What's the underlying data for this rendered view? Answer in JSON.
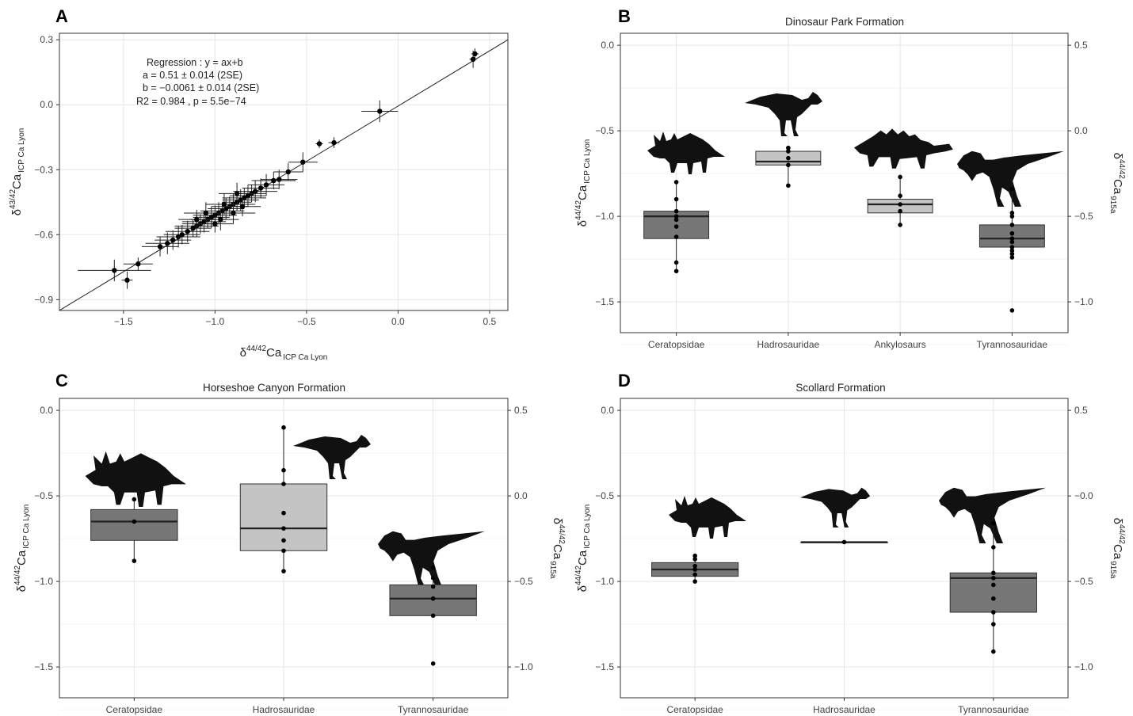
{
  "colors": {
    "box_dark": "#777777",
    "box_light": "#c4c4c4",
    "point": "#000000",
    "grid": "#e6e6e6"
  },
  "chart_data": [
    {
      "id": "A",
      "letter": "A",
      "type": "scatter",
      "title": "",
      "xlabel": {
        "base": "δ",
        "sup": "44/42",
        "main": "Ca",
        "sub": "ICP Ca Lyon"
      },
      "ylabel": {
        "base": "δ",
        "sup": "43/42",
        "main": "Ca",
        "sub": "ICP Ca Lyon"
      },
      "xlim": [
        -1.85,
        0.6
      ],
      "ylim": [
        -0.95,
        0.33
      ],
      "xticks": [
        -1.5,
        -1.0,
        -0.5,
        0.0,
        0.5
      ],
      "xtick_labels": [
        "−1.5",
        "−1.0",
        "−0.5",
        "0.0",
        "0.5"
      ],
      "yticks": [
        -0.9,
        -0.6,
        -0.3,
        0.0,
        0.3
      ],
      "ytick_labels": [
        "−0.9",
        "−0.6",
        "−0.3",
        "0.0",
        "0.3"
      ],
      "annotation": [
        "Regression : y = ax+b",
        "a =  0.51 ± 0.014 (2SE)",
        "b = −0.0061 ± 0.014 (2SE)",
        "R2 =  0.984 , p =  5.5e−74"
      ],
      "regression": {
        "slope": 0.51,
        "intercept": -0.0061
      },
      "points": [
        [
          0.42,
          0.235,
          0.02,
          0.025
        ],
        [
          0.41,
          0.21,
          0.02,
          0.04
        ],
        [
          -0.1,
          -0.03,
          0.1,
          0.05
        ],
        [
          -0.43,
          -0.18,
          0.02,
          0.02
        ],
        [
          -0.35,
          -0.175,
          0.03,
          0.025
        ],
        [
          -0.52,
          -0.265,
          0.08,
          0.045
        ],
        [
          -0.6,
          -0.31,
          0.08,
          0.04
        ],
        [
          -0.65,
          -0.345,
          0.1,
          0.045
        ],
        [
          -0.68,
          -0.35,
          0.12,
          0.04
        ],
        [
          -0.72,
          -0.37,
          0.1,
          0.05
        ],
        [
          -0.75,
          -0.385,
          0.1,
          0.045
        ],
        [
          -0.78,
          -0.4,
          0.12,
          0.05
        ],
        [
          -0.8,
          -0.41,
          0.08,
          0.04
        ],
        [
          -0.82,
          -0.42,
          0.1,
          0.05
        ],
        [
          -0.84,
          -0.43,
          0.12,
          0.045
        ],
        [
          -0.86,
          -0.44,
          0.1,
          0.05
        ],
        [
          -0.88,
          -0.45,
          0.08,
          0.04
        ],
        [
          -0.9,
          -0.46,
          0.12,
          0.05
        ],
        [
          -0.92,
          -0.47,
          0.1,
          0.045
        ],
        [
          -0.94,
          -0.48,
          0.1,
          0.05
        ],
        [
          -0.96,
          -0.49,
          0.12,
          0.04
        ],
        [
          -0.98,
          -0.5,
          0.1,
          0.05
        ],
        [
          -1.0,
          -0.51,
          0.12,
          0.045
        ],
        [
          -1.02,
          -0.52,
          0.1,
          0.05
        ],
        [
          -1.04,
          -0.53,
          0.1,
          0.04
        ],
        [
          -1.06,
          -0.54,
          0.12,
          0.05
        ],
        [
          -1.08,
          -0.55,
          0.1,
          0.045
        ],
        [
          -1.1,
          -0.56,
          0.12,
          0.05
        ],
        [
          -1.12,
          -0.57,
          0.1,
          0.04
        ],
        [
          -1.15,
          -0.585,
          0.12,
          0.05
        ],
        [
          -1.18,
          -0.6,
          0.1,
          0.045
        ],
        [
          -1.2,
          -0.61,
          0.12,
          0.05
        ],
        [
          -1.23,
          -0.625,
          0.1,
          0.045
        ],
        [
          -1.26,
          -0.64,
          0.12,
          0.05
        ],
        [
          -1.3,
          -0.655,
          0.1,
          0.045
        ],
        [
          -0.95,
          -0.46,
          0.1,
          0.05
        ],
        [
          -0.9,
          -0.5,
          0.12,
          0.05
        ],
        [
          -0.85,
          -0.47,
          0.1,
          0.045
        ],
        [
          -1.05,
          -0.5,
          0.12,
          0.05
        ],
        [
          -1.0,
          -0.55,
          0.1,
          0.04
        ],
        [
          -0.97,
          -0.53,
          0.1,
          0.05
        ],
        [
          -1.1,
          -0.53,
          0.1,
          0.045
        ],
        [
          -0.88,
          -0.41,
          0.1,
          0.05
        ],
        [
          -1.42,
          -0.735,
          0.08,
          0.03
        ],
        [
          -1.48,
          -0.81,
          0.03,
          0.04
        ],
        [
          -1.55,
          -0.765,
          0.2,
          0.05
        ]
      ]
    },
    {
      "id": "B",
      "letter": "B",
      "type": "box",
      "title": "Dinosaur Park Formation",
      "ylabel_left": {
        "base": "δ",
        "sup": "44/42",
        "main": "Ca",
        "sub": "ICP Ca Lyon"
      },
      "ylabel_right": {
        "base": "δ",
        "sup": "44/42",
        "main": "Ca",
        "sub": "915a"
      },
      "ylim": [
        -1.68,
        0.07
      ],
      "yticks_left": [
        0.0,
        -0.5,
        -1.0,
        -1.5
      ],
      "ytick_labels_left": [
        "0.0",
        "−0.5",
        "−1.0",
        "−1.5"
      ],
      "yticks_right_at": [
        0.0,
        -0.5,
        -1.0,
        -1.5
      ],
      "ytick_labels_right": [
        "0.5",
        "0.0",
        "−0.5",
        "−1.0"
      ],
      "categories": [
        "Ceratopsidae",
        "Hadrosauridae",
        "Ankylosaurs",
        "Tyrannosauridae"
      ],
      "boxes": [
        {
          "q1": -1.13,
          "median": -1.0,
          "q3": -0.97,
          "min": -1.32,
          "max": -0.8,
          "fill": "dark",
          "silhouette": "ceratopsid",
          "points": [
            -0.8,
            -0.9,
            -0.97,
            -1.0,
            -1.02,
            -1.06,
            -1.12,
            -1.27,
            -1.32
          ]
        },
        {
          "q1": -0.7,
          "median": -0.68,
          "q3": -0.62,
          "min": -0.82,
          "max": -0.6,
          "fill": "light",
          "silhouette": "hadrosaur",
          "points": [
            -0.6,
            -0.62,
            -0.66,
            -0.7,
            -0.82
          ]
        },
        {
          "q1": -0.98,
          "median": -0.93,
          "q3": -0.9,
          "min": -1.05,
          "max": -0.77,
          "fill": "light",
          "silhouette": "ankylosaur",
          "points": [
            -0.77,
            -0.88,
            -0.93,
            -0.97,
            -1.05
          ]
        },
        {
          "q1": -1.18,
          "median": -1.13,
          "q3": -1.05,
          "min": -1.24,
          "max": -0.84,
          "fill": "dark",
          "silhouette": "tyrannosaur",
          "points": [
            -0.84,
            -0.98,
            -1.0,
            -1.05,
            -1.1,
            -1.13,
            -1.15,
            -1.18,
            -1.2,
            -1.22,
            -1.24,
            -1.55
          ]
        }
      ]
    },
    {
      "id": "C",
      "letter": "C",
      "type": "box",
      "title": "Horseshoe Canyon Formation",
      "ylabel_left": {
        "base": "δ",
        "sup": "44/42",
        "main": "Ca",
        "sub": "ICP Ca Lyon"
      },
      "ylabel_right": {
        "base": "δ",
        "sup": "44/42",
        "main": "Ca",
        "sub": "915a"
      },
      "ylim": [
        -1.68,
        0.07
      ],
      "yticks_left": [
        0.0,
        -0.5,
        -1.0,
        -1.5
      ],
      "ytick_labels_left": [
        "0.0",
        "−0.5",
        "−1.0",
        "−1.5"
      ],
      "yticks_right_at": [
        0.0,
        -0.5,
        -1.0,
        -1.5
      ],
      "ytick_labels_right": [
        "0.5",
        "0.0",
        "−0.5",
        "−1.0"
      ],
      "categories": [
        "Ceratopsidae",
        "Hadrosauridae",
        "Tyrannosauridae"
      ],
      "boxes": [
        {
          "q1": -0.76,
          "median": -0.65,
          "q3": -0.58,
          "min": -0.88,
          "max": -0.52,
          "fill": "dark",
          "silhouette": "ceratopsid",
          "points": [
            -0.52,
            -0.65,
            -0.88
          ]
        },
        {
          "q1": -0.82,
          "median": -0.69,
          "q3": -0.43,
          "min": -0.94,
          "max": -0.1,
          "fill": "light",
          "silhouette": "hadrosaur",
          "points": [
            -0.1,
            -0.35,
            -0.43,
            -0.6,
            -0.69,
            -0.76,
            -0.82,
            -0.94
          ]
        },
        {
          "q1": -1.2,
          "median": -1.1,
          "q3": -1.02,
          "min": -1.2,
          "max": -0.92,
          "fill": "dark",
          "silhouette": "tyrannosaur",
          "points": [
            -0.92,
            -0.98,
            -1.03,
            -1.1,
            -1.2,
            -1.48
          ]
        }
      ]
    },
    {
      "id": "D",
      "letter": "D",
      "type": "box",
      "title": "Scollard Formation",
      "ylabel_left": {
        "base": "δ",
        "sup": "44/42",
        "main": "Ca",
        "sub": "ICP Ca Lyon"
      },
      "ylabel_right": {
        "base": "δ",
        "sup": "44/42",
        "main": "Ca",
        "sub": "915a"
      },
      "ylim": [
        -1.68,
        0.07
      ],
      "yticks_left": [
        0.0,
        -0.5,
        -1.0,
        -1.5
      ],
      "ytick_labels_left": [
        "0.0",
        "−0.5",
        "−1.0",
        "−1.5"
      ],
      "yticks_right_at": [
        0.0,
        -0.5,
        -1.0,
        -1.5
      ],
      "ytick_labels_right": [
        "0.5",
        "−0.0",
        "−0.5",
        "−1.0"
      ],
      "categories": [
        "Ceratopsidae",
        "Hadrosauridae",
        "Tyrannosauridae"
      ],
      "boxes": [
        {
          "q1": -0.97,
          "median": -0.93,
          "q3": -0.89,
          "min": -1.0,
          "max": -0.85,
          "fill": "dark",
          "silhouette": "ceratopsid",
          "points": [
            -0.85,
            -0.87,
            -0.91,
            -0.93,
            -0.96,
            -1.0
          ]
        },
        {
          "q1": -0.77,
          "median": -0.77,
          "q3": -0.77,
          "min": -0.77,
          "max": -0.77,
          "fill": "light",
          "silhouette": "hadrosaur",
          "points": [
            -0.77
          ]
        },
        {
          "q1": -1.18,
          "median": -0.98,
          "q3": -0.95,
          "min": -1.41,
          "max": -0.66,
          "fill": "dark",
          "silhouette": "tyrannosaur",
          "points": [
            -0.66,
            -0.8,
            -0.95,
            -0.98,
            -1.02,
            -1.1,
            -1.18,
            -1.25,
            -1.41
          ]
        }
      ]
    }
  ]
}
